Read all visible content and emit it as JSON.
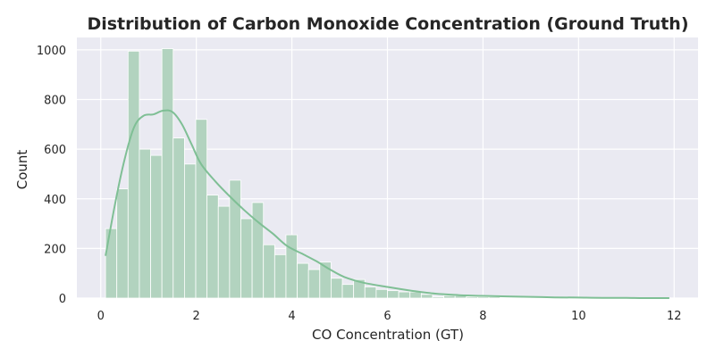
{
  "chart_data": {
    "type": "bar",
    "subtype": "histogram-with-kde",
    "title": "Distribution of Carbon Monoxide Concentration (Ground Truth)",
    "xlabel": "CO Concentration (GT)",
    "ylabel": "Count",
    "xlim": [
      -0.5,
      12.5
    ],
    "ylim": [
      0,
      1050
    ],
    "xticks": [
      0,
      2,
      4,
      6,
      8,
      10,
      12
    ],
    "yticks": [
      0,
      200,
      400,
      600,
      800,
      1000
    ],
    "grid": true,
    "bar_color": "#b2d3bf",
    "kde_color": "#7fbf95",
    "background_color": "#eaeaf2",
    "bins": {
      "start": 0.1,
      "width": 0.236,
      "counts": [
        280,
        440,
        995,
        600,
        575,
        1005,
        645,
        540,
        720,
        415,
        370,
        475,
        320,
        385,
        215,
        175,
        255,
        140,
        115,
        145,
        80,
        55,
        75,
        45,
        35,
        30,
        25,
        25,
        15,
        5,
        10,
        10,
        5,
        5,
        5,
        3,
        3,
        2,
        2,
        1,
        1,
        1,
        1,
        0,
        0,
        0,
        0,
        0,
        0,
        1
      ]
    },
    "kde": {
      "x": [
        0.1,
        0.3,
        0.5,
        0.7,
        0.9,
        1.1,
        1.3,
        1.5,
        1.7,
        1.9,
        2.1,
        2.4,
        2.7,
        3.0,
        3.3,
        3.6,
        3.9,
        4.2,
        4.5,
        4.8,
        5.1,
        5.5,
        6.0,
        6.5,
        7.0,
        7.5,
        8.0,
        8.5,
        9.0,
        9.5,
        10.0,
        10.5,
        11.0,
        11.5,
        11.9
      ],
      "y": [
        170,
        380,
        560,
        690,
        735,
        740,
        755,
        750,
        700,
        620,
        540,
        470,
        410,
        355,
        305,
        260,
        210,
        180,
        150,
        115,
        85,
        62,
        45,
        30,
        18,
        12,
        9,
        7,
        5,
        3,
        2,
        1,
        1,
        0,
        0
      ]
    }
  }
}
